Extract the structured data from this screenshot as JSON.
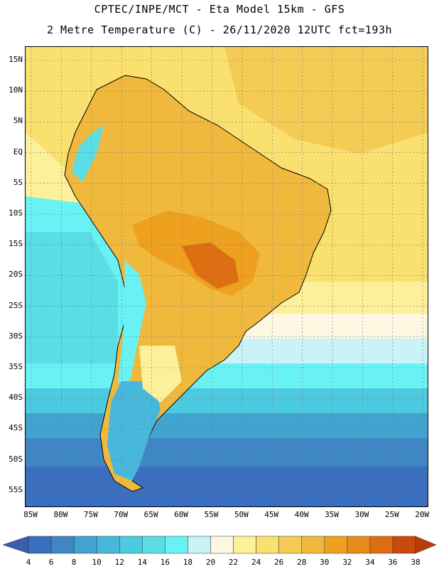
{
  "header": {
    "line1": "CPTEC/INPE/MCT -  Eta Model 15km - GFS",
    "line2": "2 Metre Temperature (C) - 26/11/2020 12UTC fct=193h"
  },
  "map": {
    "region": "South America",
    "latitude_labels": [
      "15N",
      "10N",
      "5N",
      "EQ",
      "5S",
      "10S",
      "15S",
      "20S",
      "25S",
      "30S",
      "35S",
      "40S",
      "45S",
      "50S",
      "55S"
    ],
    "longitude_labels": [
      "85W",
      "80W",
      "75W",
      "70W",
      "65W",
      "60W",
      "55W",
      "50W",
      "45W",
      "40W",
      "35W",
      "30W",
      "25W",
      "20W"
    ]
  },
  "colorbar": {
    "labels": [
      "4",
      "6",
      "8",
      "10",
      "12",
      "14",
      "16",
      "18",
      "20",
      "22",
      "24",
      "26",
      "28",
      "30",
      "32",
      "34",
      "36",
      "38"
    ],
    "colors": [
      "#3a6fbf",
      "#3f86c4",
      "#41a3d0",
      "#47b8dc",
      "#4ccadf",
      "#5bdde6",
      "#69f2f4",
      "#c9f3f7",
      "#fdf7e2",
      "#fdf09a",
      "#fae06e",
      "#f4cb55",
      "#f0b93e",
      "#eea11e",
      "#e68c1b",
      "#de6e12",
      "#c94a0c"
    ],
    "under_color": "#3a5fae",
    "over_color": "#b83d0a"
  }
}
